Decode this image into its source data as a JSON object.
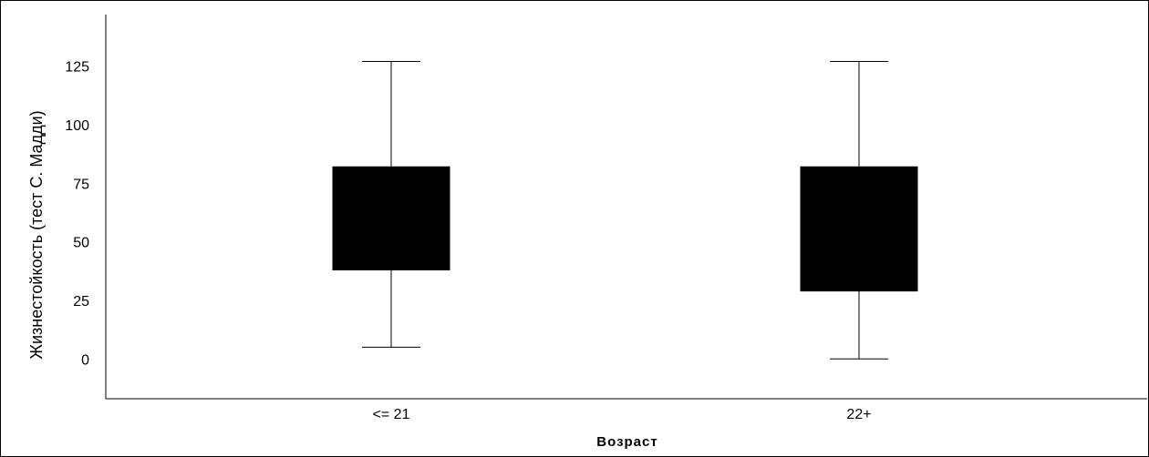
{
  "chart_data": {
    "type": "boxplot",
    "title": "",
    "xlabel": "Возраст",
    "ylabel": "Жизнестойкость (тест С. Мадди)",
    "categories": [
      "<= 21",
      "22+"
    ],
    "ylim": [
      -17,
      147
    ],
    "yticks": [
      0,
      25,
      50,
      75,
      100,
      125
    ],
    "grid": false,
    "colors": {
      "box_fill": "#000000",
      "lines": "#000000",
      "background": "#ffffff"
    },
    "boxes": [
      {
        "category": "<= 21",
        "min": 5,
        "q1": 38,
        "q3": 82,
        "max": 127
      },
      {
        "category": "22+",
        "min": 0,
        "q1": 29,
        "q3": 82,
        "max": 127
      }
    ]
  }
}
